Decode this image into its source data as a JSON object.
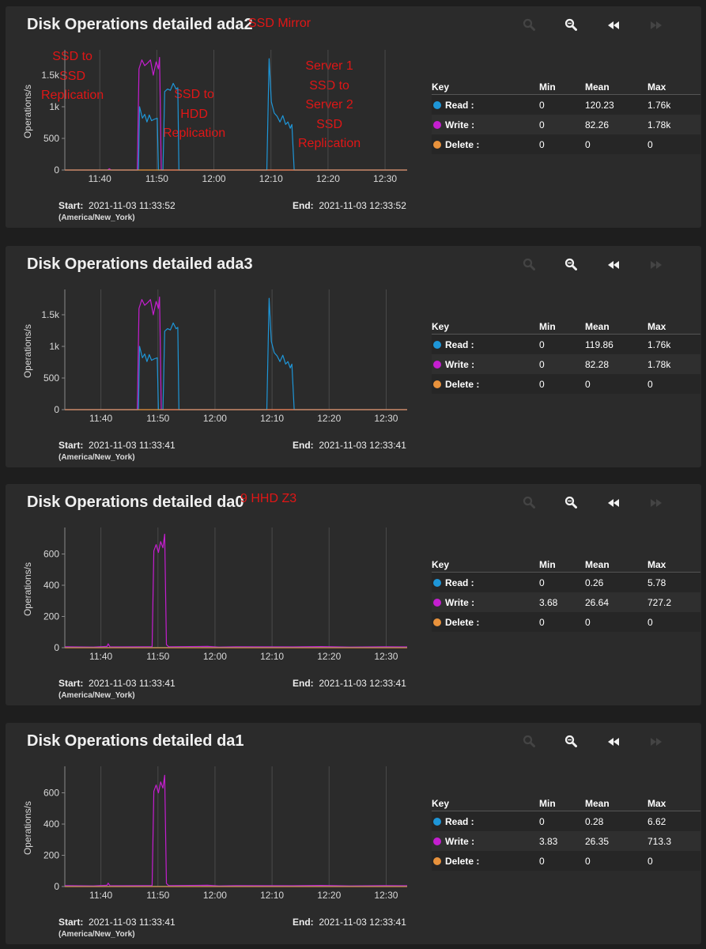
{
  "colors": {
    "read": "#1e96d8",
    "write": "#c51ed0",
    "delete": "#e8923c",
    "grid": "#4a4a4a",
    "bg": "#2b2b2b"
  },
  "toolbar": {
    "zoom_in": "zoom-in-icon",
    "zoom_out": "zoom-out-icon",
    "back": "rewind-icon",
    "forward": "fast-forward-icon"
  },
  "legend_header": {
    "key": "Key",
    "min": "Min",
    "mean": "Mean",
    "max": "Max"
  },
  "panels": [
    {
      "title": "Disk Operations detailed ada2",
      "start_label": "Start:",
      "start": "2021-11-03 11:33:52",
      "timezone": "(America/New_York)",
      "end_label": "End:",
      "end": "2021-11-03 12:33:52",
      "annotations": [
        "SSD Mirror",
        "SSD to\nSSD\nReplication",
        "SSD to\nHDD\nReplication",
        "Server 1\nSSD to\nServer 2\nSSD\nReplication"
      ],
      "legend": [
        {
          "name": "Read :",
          "min": "0",
          "mean": "120.23",
          "max": "1.76k"
        },
        {
          "name": "Write :",
          "min": "0",
          "mean": "82.26",
          "max": "1.78k"
        },
        {
          "name": "Delete :",
          "min": "0",
          "mean": "0",
          "max": "0"
        }
      ]
    },
    {
      "title": "Disk Operations detailed ada3",
      "start_label": "Start:",
      "start": "2021-11-03 11:33:41",
      "timezone": "(America/New_York)",
      "end_label": "End:",
      "end": "2021-11-03 12:33:41",
      "annotations": [],
      "legend": [
        {
          "name": "Read :",
          "min": "0",
          "mean": "119.86",
          "max": "1.76k"
        },
        {
          "name": "Write :",
          "min": "0",
          "mean": "82.28",
          "max": "1.78k"
        },
        {
          "name": "Delete :",
          "min": "0",
          "mean": "0",
          "max": "0"
        }
      ]
    },
    {
      "title": "Disk Operations detailed da0",
      "start_label": "Start:",
      "start": "2021-11-03 11:33:41",
      "timezone": "(America/New_York)",
      "end_label": "End:",
      "end": "2021-11-03 12:33:41",
      "annotations": [
        "9 HHD Z3"
      ],
      "legend": [
        {
          "name": "Read :",
          "min": "0",
          "mean": "0.26",
          "max": "5.78"
        },
        {
          "name": "Write :",
          "min": "3.68",
          "mean": "26.64",
          "max": "727.2"
        },
        {
          "name": "Delete :",
          "min": "0",
          "mean": "0",
          "max": "0"
        }
      ]
    },
    {
      "title": "Disk Operations detailed da1",
      "start_label": "Start:",
      "start": "2021-11-03 11:33:41",
      "timezone": "(America/New_York)",
      "end_label": "End:",
      "end": "2021-11-03 12:33:41",
      "annotations": [],
      "legend": [
        {
          "name": "Read :",
          "min": "0",
          "mean": "0.28",
          "max": "6.62"
        },
        {
          "name": "Write :",
          "min": "3.83",
          "mean": "26.35",
          "max": "713.3"
        },
        {
          "name": "Delete :",
          "min": "0",
          "mean": "0",
          "max": "0"
        }
      ]
    }
  ],
  "chart_data": [
    {
      "type": "line",
      "title": "Disk Operations detailed ada2",
      "ylabel": "Operations/s",
      "xlabel": "",
      "x_range_minutes": [
        0,
        60
      ],
      "x_start": "11:33:52",
      "x_tick_minutes": [
        6.13,
        16.13,
        26.13,
        36.13,
        46.13,
        56.13
      ],
      "x_tick_labels": [
        "11:40",
        "11:50",
        "12:00",
        "12:10",
        "12:20",
        "12:30"
      ],
      "ylim": [
        0,
        1900
      ],
      "y_ticks": [
        0,
        500,
        1000,
        1500
      ],
      "y_tick_labels": [
        "0",
        "500",
        "1k",
        "1.5k"
      ],
      "series": [
        {
          "name": "Read",
          "color_key": "read",
          "points": [
            [
              0,
              0
            ],
            [
              12.9,
              0
            ],
            [
              13.1,
              1000
            ],
            [
              13.6,
              820
            ],
            [
              14,
              880
            ],
            [
              14.4,
              760
            ],
            [
              14.8,
              870
            ],
            [
              15.2,
              780
            ],
            [
              15.6,
              800
            ],
            [
              16.2,
              820
            ],
            [
              16.4,
              0
            ],
            [
              17.2,
              0
            ],
            [
              17.5,
              1240
            ],
            [
              18,
              1280
            ],
            [
              18.5,
              1260
            ],
            [
              19,
              1370
            ],
            [
              19.5,
              1280
            ],
            [
              19.8,
              1300
            ],
            [
              20,
              0
            ],
            [
              35.4,
              0
            ],
            [
              35.8,
              1760
            ],
            [
              36.2,
              1080
            ],
            [
              36.7,
              900
            ],
            [
              37.2,
              850
            ],
            [
              37.7,
              760
            ],
            [
              38.2,
              860
            ],
            [
              38.7,
              720
            ],
            [
              39.1,
              760
            ],
            [
              39.5,
              660
            ],
            [
              39.8,
              720
            ],
            [
              40.2,
              0
            ],
            [
              60,
              0
            ]
          ]
        },
        {
          "name": "Write",
          "color_key": "write",
          "points": [
            [
              0,
              0
            ],
            [
              7.5,
              0
            ],
            [
              7.8,
              20
            ],
            [
              8.1,
              0
            ],
            [
              12.7,
              0
            ],
            [
              13,
              1600
            ],
            [
              13.5,
              1740
            ],
            [
              14,
              1650
            ],
            [
              14.5,
              1690
            ],
            [
              15,
              1740
            ],
            [
              15.5,
              1500
            ],
            [
              16,
              1710
            ],
            [
              16.4,
              1600
            ],
            [
              16.6,
              1780
            ],
            [
              16.9,
              0
            ],
            [
              60,
              0
            ]
          ]
        },
        {
          "name": "Delete",
          "color_key": "delete",
          "points": [
            [
              0,
              0
            ],
            [
              60,
              0
            ]
          ]
        }
      ]
    },
    {
      "type": "line",
      "title": "Disk Operations detailed ada3",
      "ylabel": "Operations/s",
      "xlabel": "",
      "x_range_minutes": [
        0,
        60
      ],
      "x_start": "11:33:41",
      "x_tick_minutes": [
        6.32,
        16.32,
        26.32,
        36.32,
        46.32,
        56.32
      ],
      "x_tick_labels": [
        "11:40",
        "11:50",
        "12:00",
        "12:10",
        "12:20",
        "12:30"
      ],
      "ylim": [
        0,
        1900
      ],
      "y_ticks": [
        0,
        500,
        1000,
        1500
      ],
      "y_tick_labels": [
        "0",
        "500",
        "1k",
        "1.5k"
      ],
      "series": [
        {
          "name": "Read",
          "color_key": "read",
          "points": [
            [
              0,
              0
            ],
            [
              12.9,
              0
            ],
            [
              13.1,
              1000
            ],
            [
              13.6,
              820
            ],
            [
              14,
              880
            ],
            [
              14.4,
              760
            ],
            [
              14.8,
              870
            ],
            [
              15.2,
              780
            ],
            [
              15.6,
              800
            ],
            [
              16.2,
              820
            ],
            [
              16.4,
              0
            ],
            [
              17.2,
              0
            ],
            [
              17.5,
              1240
            ],
            [
              18,
              1280
            ],
            [
              18.5,
              1260
            ],
            [
              19,
              1370
            ],
            [
              19.5,
              1280
            ],
            [
              19.8,
              1300
            ],
            [
              20,
              0
            ],
            [
              35.4,
              0
            ],
            [
              35.8,
              1760
            ],
            [
              36.2,
              1080
            ],
            [
              36.7,
              900
            ],
            [
              37.2,
              850
            ],
            [
              37.7,
              760
            ],
            [
              38.2,
              860
            ],
            [
              38.7,
              720
            ],
            [
              39.1,
              760
            ],
            [
              39.5,
              660
            ],
            [
              39.8,
              720
            ],
            [
              40.2,
              0
            ],
            [
              60,
              0
            ]
          ]
        },
        {
          "name": "Write",
          "color_key": "write",
          "points": [
            [
              0,
              0
            ],
            [
              12.7,
              0
            ],
            [
              13,
              1600
            ],
            [
              13.5,
              1740
            ],
            [
              14,
              1650
            ],
            [
              14.5,
              1690
            ],
            [
              15,
              1740
            ],
            [
              15.5,
              1500
            ],
            [
              16,
              1710
            ],
            [
              16.4,
              1600
            ],
            [
              16.6,
              1780
            ],
            [
              16.9,
              0
            ],
            [
              60,
              0
            ]
          ]
        },
        {
          "name": "Delete",
          "color_key": "delete",
          "points": [
            [
              0,
              0
            ],
            [
              60,
              0
            ]
          ]
        }
      ]
    },
    {
      "type": "line",
      "title": "Disk Operations detailed da0",
      "ylabel": "Operations/s",
      "xlabel": "",
      "x_range_minutes": [
        0,
        60
      ],
      "x_start": "11:33:41",
      "x_tick_minutes": [
        6.32,
        16.32,
        26.32,
        36.32,
        46.32,
        56.32
      ],
      "x_tick_labels": [
        "11:40",
        "11:50",
        "12:00",
        "12:10",
        "12:20",
        "12:30"
      ],
      "ylim": [
        0,
        770
      ],
      "y_ticks": [
        0,
        200,
        400,
        600
      ],
      "y_tick_labels": [
        "0",
        "200",
        "400",
        "600"
      ],
      "series": [
        {
          "name": "Read",
          "color_key": "read",
          "points": [
            [
              0,
              1
            ],
            [
              60,
              1
            ]
          ]
        },
        {
          "name": "Write",
          "color_key": "write",
          "points": [
            [
              0,
              6
            ],
            [
              5,
              4
            ],
            [
              7.4,
              8
            ],
            [
              7.6,
              25
            ],
            [
              7.9,
              6
            ],
            [
              10,
              5
            ],
            [
              14,
              6
            ],
            [
              15.3,
              6
            ],
            [
              15.6,
              620
            ],
            [
              16,
              660
            ],
            [
              16.4,
              610
            ],
            [
              16.8,
              680
            ],
            [
              17.2,
              640
            ],
            [
              17.5,
              727
            ],
            [
              17.8,
              20
            ],
            [
              18.2,
              6
            ],
            [
              25,
              8
            ],
            [
              27,
              4
            ],
            [
              30,
              6
            ],
            [
              40,
              5
            ],
            [
              45,
              7
            ],
            [
              50,
              4
            ],
            [
              56,
              6
            ],
            [
              60,
              5
            ]
          ]
        },
        {
          "name": "Delete",
          "color_key": "delete",
          "points": [
            [
              0,
              0
            ],
            [
              60,
              0
            ]
          ]
        }
      ]
    },
    {
      "type": "line",
      "title": "Disk Operations detailed da1",
      "ylabel": "Operations/s",
      "xlabel": "",
      "x_range_minutes": [
        0,
        60
      ],
      "x_start": "11:33:41",
      "x_tick_minutes": [
        6.32,
        16.32,
        26.32,
        36.32,
        46.32,
        56.32
      ],
      "x_tick_labels": [
        "11:40",
        "11:50",
        "12:00",
        "12:10",
        "12:20",
        "12:30"
      ],
      "ylim": [
        0,
        770
      ],
      "y_ticks": [
        0,
        200,
        400,
        600
      ],
      "y_tick_labels": [
        "0",
        "200",
        "400",
        "600"
      ],
      "series": [
        {
          "name": "Read",
          "color_key": "read",
          "points": [
            [
              0,
              1
            ],
            [
              60,
              1
            ]
          ]
        },
        {
          "name": "Write",
          "color_key": "write",
          "points": [
            [
              0,
              6
            ],
            [
              5,
              4
            ],
            [
              7.4,
              8
            ],
            [
              7.6,
              22
            ],
            [
              7.9,
              6
            ],
            [
              10,
              5
            ],
            [
              14,
              6
            ],
            [
              15.3,
              6
            ],
            [
              15.6,
              610
            ],
            [
              16,
              650
            ],
            [
              16.4,
              600
            ],
            [
              16.8,
              670
            ],
            [
              17.2,
              630
            ],
            [
              17.5,
              713
            ],
            [
              17.8,
              20
            ],
            [
              18.2,
              6
            ],
            [
              25,
              8
            ],
            [
              27,
              4
            ],
            [
              30,
              6
            ],
            [
              40,
              5
            ],
            [
              45,
              7
            ],
            [
              50,
              4
            ],
            [
              56,
              6
            ],
            [
              60,
              5
            ]
          ]
        },
        {
          "name": "Delete",
          "color_key": "delete",
          "points": [
            [
              0,
              0
            ],
            [
              60,
              0
            ]
          ]
        }
      ]
    }
  ]
}
